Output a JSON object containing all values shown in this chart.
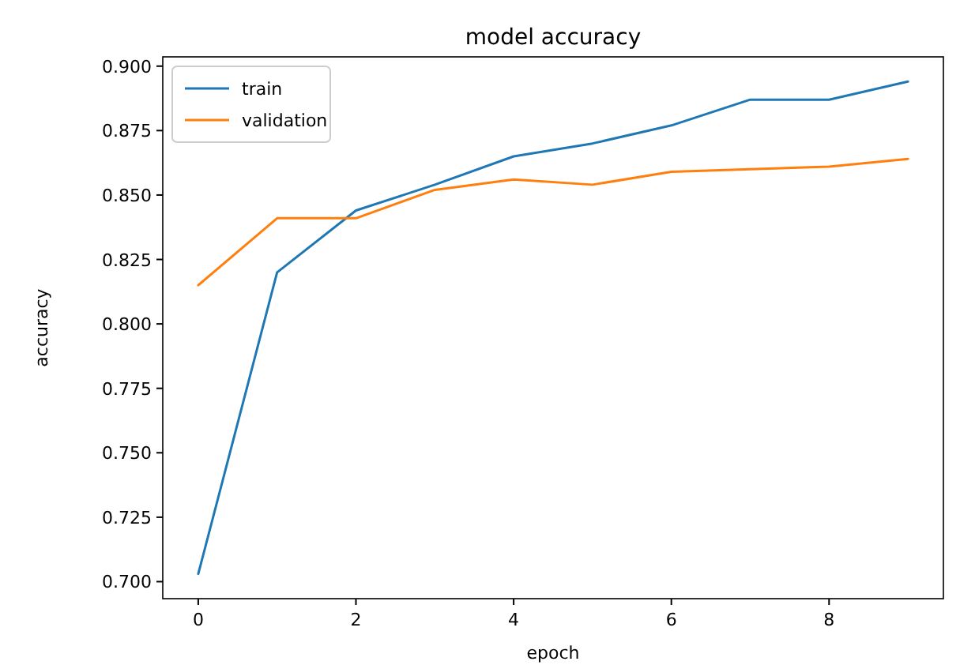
{
  "chart_data": {
    "type": "line",
    "title": "model accuracy",
    "xlabel": "epoch",
    "ylabel": "accuracy",
    "x": [
      0,
      1,
      2,
      3,
      4,
      5,
      6,
      7,
      8,
      9
    ],
    "series": [
      {
        "name": "train",
        "color": "#1f77b4",
        "values": [
          0.703,
          0.82,
          0.844,
          0.854,
          0.865,
          0.87,
          0.877,
          0.887,
          0.887,
          0.894
        ]
      },
      {
        "name": "validation",
        "color": "#ff7f0e",
        "values": [
          0.815,
          0.841,
          0.841,
          0.852,
          0.856,
          0.854,
          0.859,
          0.86,
          0.861,
          0.864
        ]
      }
    ],
    "xlim": [
      -0.45,
      9.45
    ],
    "xticks": [
      0,
      2,
      4,
      6,
      8
    ],
    "ylim": [
      0.6934,
      0.9036
    ],
    "yticks": [
      {
        "value": 0.7,
        "label": "0.700"
      },
      {
        "value": 0.725,
        "label": "0.725"
      },
      {
        "value": 0.75,
        "label": "0.750"
      },
      {
        "value": 0.775,
        "label": "0.775"
      },
      {
        "value": 0.8,
        "label": "0.800"
      },
      {
        "value": 0.825,
        "label": "0.825"
      },
      {
        "value": 0.85,
        "label": "0.850"
      },
      {
        "value": 0.875,
        "label": "0.875"
      },
      {
        "value": 0.9,
        "label": "0.900"
      }
    ],
    "legend": "top left",
    "grid": false
  }
}
